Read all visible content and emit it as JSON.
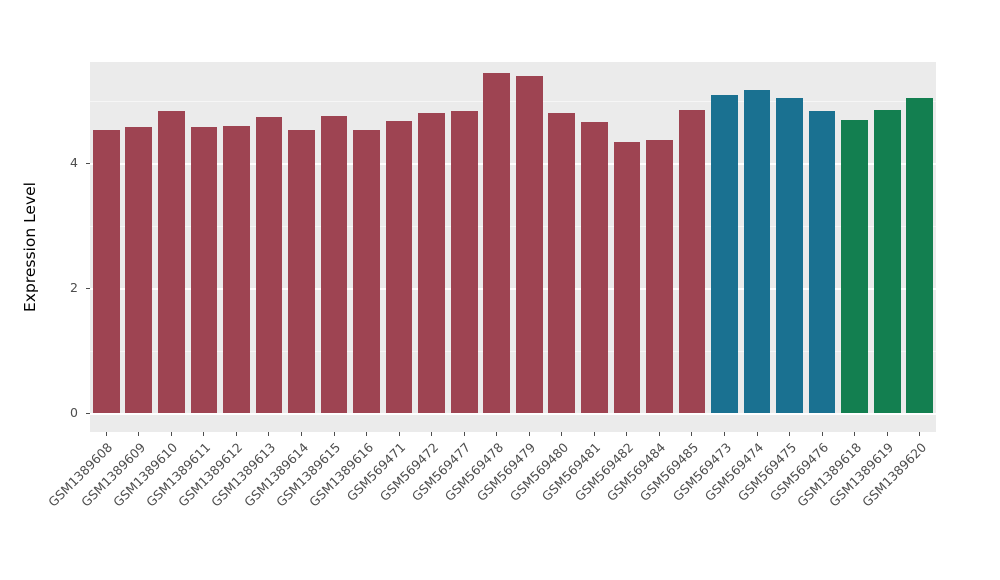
{
  "chart_data": {
    "type": "bar",
    "title": "",
    "xlabel": "",
    "ylabel": "Expression Level",
    "ylim": [
      -0.3,
      5.62
    ],
    "yticks": [
      0,
      2,
      4
    ],
    "minor_gridlines": [
      1,
      3,
      5
    ],
    "grid": true,
    "legend": "none",
    "panel_bg": "#EBEBEB",
    "categories": [
      "GSM1389608",
      "GSM1389609",
      "GSM1389610",
      "GSM1389611",
      "GSM1389612",
      "GSM1389613",
      "GSM1389614",
      "GSM1389615",
      "GSM1389616",
      "GSM569471",
      "GSM569472",
      "GSM569477",
      "GSM569478",
      "GSM569479",
      "GSM569480",
      "GSM569481",
      "GSM569482",
      "GSM569484",
      "GSM569485",
      "GSM569473",
      "GSM569474",
      "GSM569475",
      "GSM569476",
      "GSM1389618",
      "GSM1389619",
      "GSM1389620"
    ],
    "values": [
      4.54,
      4.58,
      4.83,
      4.58,
      4.59,
      4.74,
      4.54,
      4.75,
      4.54,
      4.67,
      4.8,
      4.83,
      5.44,
      5.39,
      4.8,
      4.66,
      4.34,
      4.37,
      4.86,
      5.1,
      5.18,
      5.04,
      4.83,
      4.69,
      4.85,
      5.04
    ],
    "groups": [
      "red",
      "red",
      "red",
      "red",
      "red",
      "red",
      "red",
      "red",
      "red",
      "red",
      "red",
      "red",
      "red",
      "red",
      "red",
      "red",
      "red",
      "red",
      "red",
      "blue",
      "blue",
      "blue",
      "blue",
      "green",
      "green",
      "green"
    ],
    "colors": {
      "red": "#9E4452",
      "blue": "#1A7191",
      "green": "#137F50"
    }
  }
}
